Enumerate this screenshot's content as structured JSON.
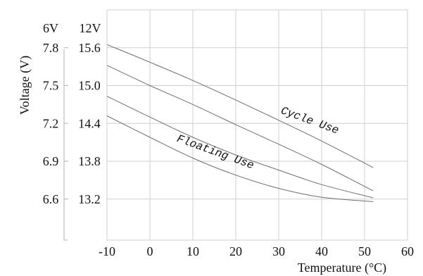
{
  "chart_data": {
    "type": "line",
    "title": "",
    "xlabel": "Temperature (°C)",
    "ylabel": "Voltage (V)",
    "y_headers": {
      "six_volt": "6V",
      "twelve_volt": "12V"
    },
    "x_ticks": [
      -10,
      0,
      10,
      20,
      30,
      40,
      50,
      60
    ],
    "x_tick_labels": [
      "-10",
      "0",
      "10",
      "20",
      "30",
      "40",
      "50",
      "60"
    ],
    "y_ticks_12v": [
      13.2,
      13.8,
      14.4,
      15.0,
      15.6
    ],
    "y_tick_labels_12v": [
      "13.2",
      "13.8",
      "14.4",
      "15.0",
      "15.6"
    ],
    "y_tick_labels_6v": [
      "6.6",
      "6.9",
      "7.2",
      "7.5",
      "7.8"
    ],
    "xlim": [
      -10,
      60
    ],
    "ylim": [
      12.55,
      16.2
    ],
    "grid": true,
    "series": [
      {
        "name": "Cycle Use",
        "bound": "upper",
        "x": [
          -10,
          0,
          10,
          20,
          30,
          40,
          52
        ],
        "y": [
          15.65,
          15.37,
          15.08,
          14.77,
          14.45,
          14.12,
          13.7
        ]
      },
      {
        "name": "Cycle Use",
        "bound": "lower",
        "x": [
          -10,
          0,
          10,
          20,
          30,
          40,
          52
        ],
        "y": [
          15.32,
          15.0,
          14.7,
          14.38,
          14.07,
          13.75,
          13.33
        ]
      },
      {
        "name": "Floating Use",
        "bound": "upper",
        "x": [
          -10,
          0,
          10,
          20,
          30,
          40,
          52
        ],
        "y": [
          14.83,
          14.5,
          14.18,
          13.9,
          13.66,
          13.43,
          13.22
        ]
      },
      {
        "name": "Floating Use",
        "bound": "lower",
        "x": [
          -10,
          0,
          10,
          20,
          30,
          40,
          52
        ],
        "y": [
          14.52,
          14.18,
          13.85,
          13.58,
          13.37,
          13.23,
          13.16
        ]
      }
    ],
    "annotations": [
      {
        "text": "Cycle Use",
        "x": 37,
        "y": 14.4,
        "angle": 20
      },
      {
        "text": "Floating Use",
        "x": 15,
        "y": 13.9,
        "angle": 20
      }
    ]
  }
}
